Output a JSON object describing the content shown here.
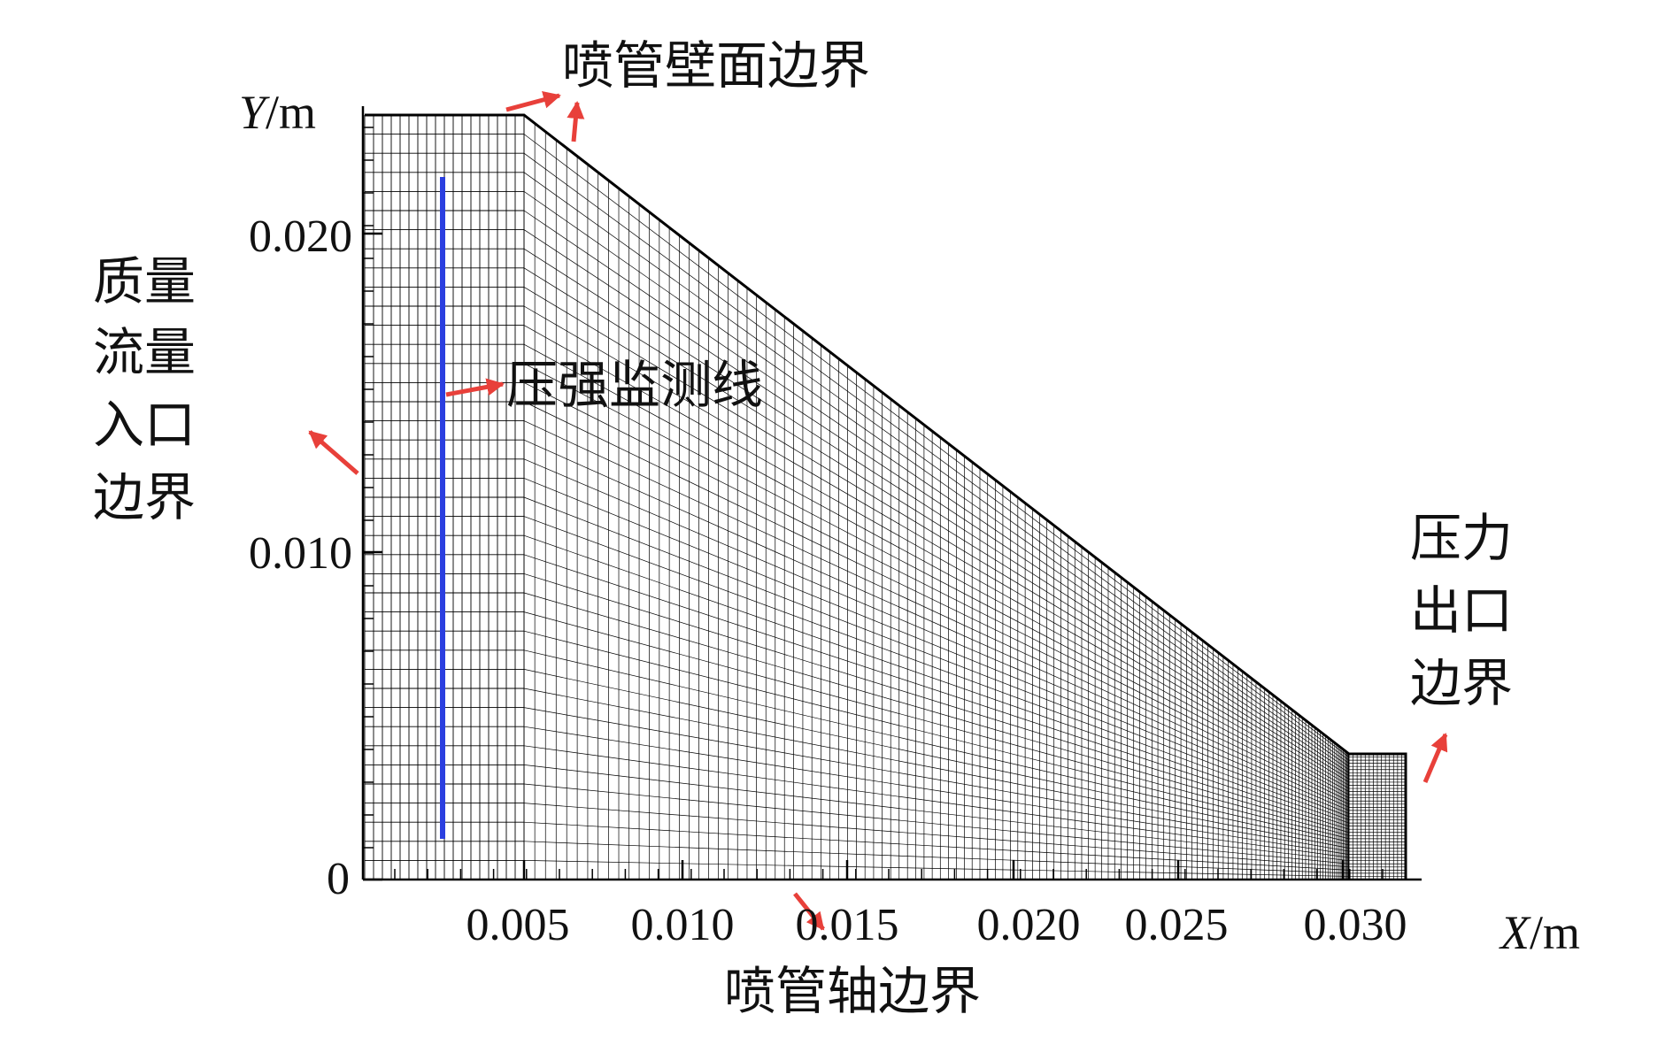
{
  "axes": {
    "y_label_var": "Y",
    "y_label_unit": "/m",
    "x_label_var": "X",
    "x_label_unit": "/m",
    "y_ticks": [
      "0",
      "0.010",
      "0.020"
    ],
    "x_ticks": [
      "0.005",
      "0.010",
      "0.015",
      "0.020",
      "0.025",
      "0.030"
    ]
  },
  "labels": {
    "wall_boundary": "喷管壁面边界",
    "inlet_boundary": [
      "质量",
      "流量",
      "入口",
      "边界"
    ],
    "pressure_monitor_line": "压强监测线",
    "outlet_boundary": [
      "压力",
      "出口",
      "边界"
    ],
    "axis_boundary": "喷管轴边界"
  },
  "colors": {
    "mesh": "#000000",
    "monitor_line": "#2b3fe0",
    "arrow": "#e8403a"
  }
}
